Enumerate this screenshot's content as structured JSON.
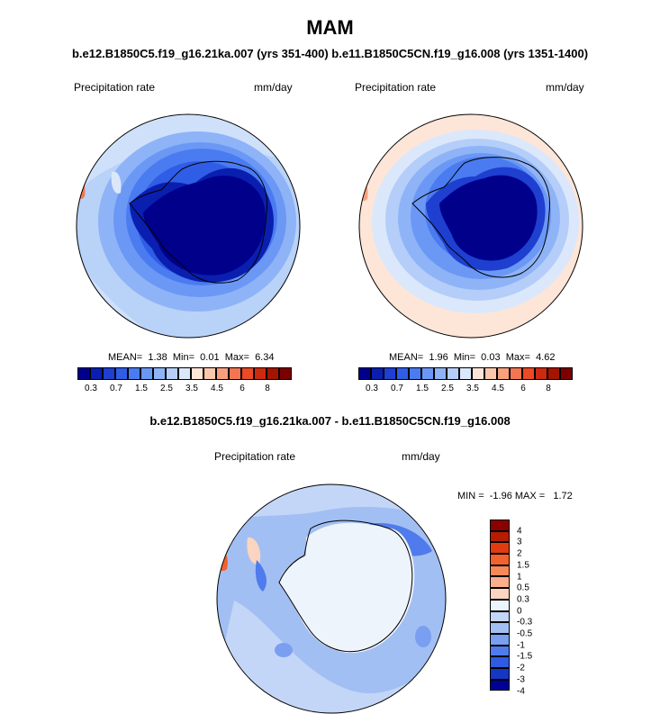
{
  "title": "MAM",
  "subtitle_top": "b.e12.B1850C5.f19_g16.21ka.007 (yrs 351-400) b.e11.B1850C5CN.f19_g16.008 (yrs 1351-1400)",
  "subtitle_diff": "b.e12.B1850C5.f19_g16.21ka.007 - b.e11.B1850C5CN.f19_g16.008",
  "panels": [
    {
      "variable": "Precipitation rate",
      "units": "mm/day",
      "mean_label": "MEAN=",
      "mean": "1.38",
      "min_label": "Min=",
      "min": "0.01",
      "max_label": "Max=",
      "max": "6.34"
    },
    {
      "variable": "Precipitation rate",
      "units": "mm/day",
      "mean_label": "MEAN=",
      "mean": "1.96",
      "min_label": "Min=",
      "min": "0.03",
      "max_label": "Max=",
      "max": "4.62"
    }
  ],
  "diff_panel": {
    "variable": "Precipitation rate",
    "units": "mm/day",
    "minmax": "MIN =  -1.96 MAX =   1.72"
  },
  "colorbar_abs": {
    "colors": [
      "#00008b",
      "#0a1fb0",
      "#1e3fd0",
      "#2f5de6",
      "#4a7bf0",
      "#6b98f4",
      "#8fb3f7",
      "#b4cef9",
      "#dbe8fb",
      "#fde5d8",
      "#fbc7ad",
      "#f7a07e",
      "#f37652",
      "#ea4a25",
      "#cc2a10",
      "#a41500",
      "#7b0000"
    ],
    "ticks": [
      "0.3",
      "0.7",
      "1.5",
      "2.5",
      "3.5",
      "4.5",
      "6",
      "8"
    ]
  },
  "colorbar_diff": {
    "colors": [
      "#8b0000",
      "#b81c00",
      "#e03c10",
      "#f0622e",
      "#f6885a",
      "#f9ae8c",
      "#fcd5c0",
      "#eef4fc",
      "#c3d6f7",
      "#a2bff3",
      "#7a9ff0",
      "#4f7bec",
      "#2f5be0",
      "#1636c4",
      "#000096"
    ],
    "ticks": [
      "4",
      "3",
      "2",
      "1.5",
      "1",
      "0.5",
      "0.3",
      "0",
      "-0.3",
      "-0.5",
      "-1",
      "-1.5",
      "-2",
      "-3",
      "-4"
    ]
  }
}
